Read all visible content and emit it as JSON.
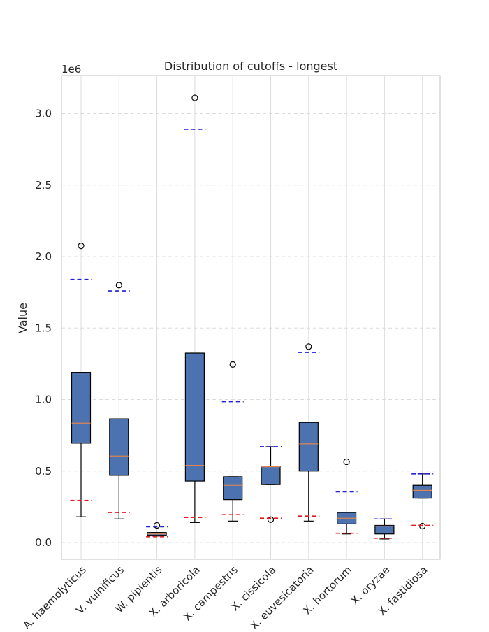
{
  "chart_data": {
    "type": "box",
    "title": "Distribution of cutoffs - longest",
    "xlabel": "",
    "ylabel": "Value",
    "y_scale_label": "1e6",
    "ylim": [
      -120000,
      3250000
    ],
    "yticks": [
      0,
      500000,
      1000000,
      1500000,
      2000000,
      2500000,
      3000000
    ],
    "ytick_labels": [
      "0.0",
      "0.5",
      "1.0",
      "1.5",
      "2.0",
      "2.5",
      "3.0"
    ],
    "grid": true,
    "categories": [
      "A. haemolyticus",
      "V. vulnificus",
      "W. pipientis",
      "X. arboricola",
      "X. campestris",
      "X. cissicola",
      "X. euvesicatoria",
      "X. hortorum",
      "X. oryzae",
      "X. fastidiosa"
    ],
    "boxes": [
      {
        "whisker_low": 180000,
        "q1": 695000,
        "median": 835000,
        "q3": 1190000,
        "whisker_high": 1190000,
        "outliers": [
          2075000
        ],
        "red_line": 295000,
        "blue_line": 1840000
      },
      {
        "whisker_low": 165000,
        "q1": 470000,
        "median": 605000,
        "q3": 865000,
        "whisker_high": 865000,
        "outliers": [
          1800000
        ],
        "red_line": 210000,
        "blue_line": 1760000
      },
      {
        "whisker_low": 45000,
        "q1": 50000,
        "median": 60000,
        "q3": 70000,
        "whisker_high": 70000,
        "outliers": [
          120000
        ],
        "red_line": 40000,
        "blue_line": 110000
      },
      {
        "whisker_low": 140000,
        "q1": 430000,
        "median": 540000,
        "q3": 1325000,
        "whisker_high": 1325000,
        "outliers": [
          3110000
        ],
        "red_line": 175000,
        "blue_line": 2890000
      },
      {
        "whisker_low": 150000,
        "q1": 300000,
        "median": 400000,
        "q3": 460000,
        "whisker_high": 460000,
        "outliers": [
          1245000
        ],
        "red_line": 195000,
        "blue_line": 985000
      },
      {
        "whisker_low": 405000,
        "q1": 405000,
        "median": 530000,
        "q3": 535000,
        "whisker_high": 670000,
        "outliers": [
          160000
        ],
        "red_line": 170000,
        "blue_line": 670000
      },
      {
        "whisker_low": 150000,
        "q1": 500000,
        "median": 690000,
        "q3": 840000,
        "whisker_high": 840000,
        "outliers": [
          1370000
        ],
        "red_line": 185000,
        "blue_line": 1330000
      },
      {
        "whisker_low": 60000,
        "q1": 130000,
        "median": 170000,
        "q3": 210000,
        "whisker_high": 210000,
        "outliers": [
          565000
        ],
        "red_line": 65000,
        "blue_line": 355000
      },
      {
        "whisker_low": 25000,
        "q1": 60000,
        "median": 115000,
        "q3": 120000,
        "whisker_high": 165000,
        "outliers": [],
        "red_line": 30000,
        "blue_line": 165000
      },
      {
        "whisker_low": 310000,
        "q1": 310000,
        "median": 365000,
        "q3": 400000,
        "whisker_high": 480000,
        "outliers": [
          115000
        ],
        "red_line": 120000,
        "blue_line": 480000
      }
    ],
    "colors": {
      "box_fill": "#4c72b0",
      "median": "#dd8452",
      "red_line": "#e41a1c",
      "blue_line": "#1f1fd8",
      "grid": "#dcdcdc",
      "axes_edge": "#cccccc"
    }
  }
}
